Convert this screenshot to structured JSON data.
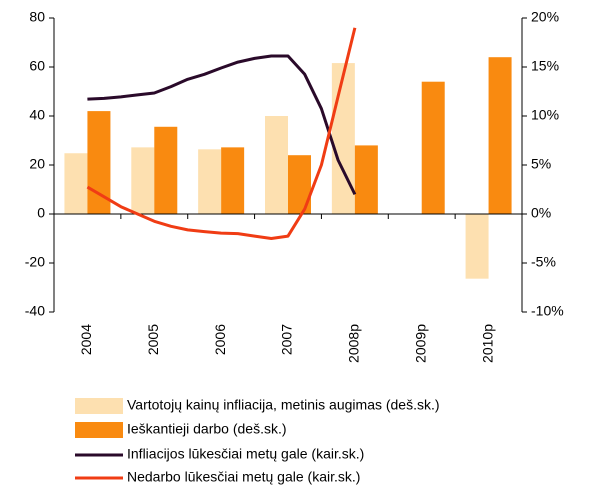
{
  "chart_data": {
    "type": "bar",
    "categories": [
      "2004",
      "2005",
      "2006",
      "2007",
      "2008p",
      "2009p",
      "2010p"
    ],
    "ylim": [
      -40,
      80
    ],
    "yticks": [
      -40,
      -20,
      0,
      20,
      40,
      60,
      80
    ],
    "y2lim": [
      -10,
      20
    ],
    "y2ticks": [
      {
        "value": -10,
        "label": "-10%"
      },
      {
        "value": -5,
        "label": "-5%"
      },
      {
        "value": 0,
        "label": "0%"
      },
      {
        "value": 5,
        "label": "5%"
      },
      {
        "value": 10,
        "label": "10%"
      },
      {
        "value": 15,
        "label": "15%"
      },
      {
        "value": 20,
        "label": "20%"
      }
    ],
    "series": [
      {
        "name": "Vartotojų kainų infliacija, metinis augimas (deš.sk.)",
        "color": "#fde0b0",
        "axis": "y2",
        "values": [
          6.2,
          6.8,
          6.6,
          10.0,
          15.4,
          null,
          -6.6
        ]
      },
      {
        "name": "Ieškantieji darbo (deš.sk.)",
        "color": "#f98a10",
        "axis": "y2",
        "values": [
          10.5,
          8.9,
          6.8,
          6.0,
          7.0,
          13.5,
          16.0
        ]
      }
    ],
    "line_series": [
      {
        "name": "Infliacijos lūkesčiai metų gale (kair.sk.)",
        "color": "#2a0a2a",
        "values": [
          46.9,
          47.2,
          47.8,
          48.6,
          49.4,
          52,
          55,
          57,
          59.6,
          62,
          63.5,
          64.5,
          64.5,
          57,
          43,
          22,
          8
        ]
      },
      {
        "name": "Nedarbo lūkesčiai metų gale (kair.sk.)",
        "color": "#f03c14",
        "values": [
          11,
          7,
          3,
          0,
          -3,
          -5,
          -6.5,
          -7.2,
          -7.8,
          -8,
          -9,
          -10,
          -9,
          2,
          20,
          48,
          76
        ]
      }
    ]
  }
}
